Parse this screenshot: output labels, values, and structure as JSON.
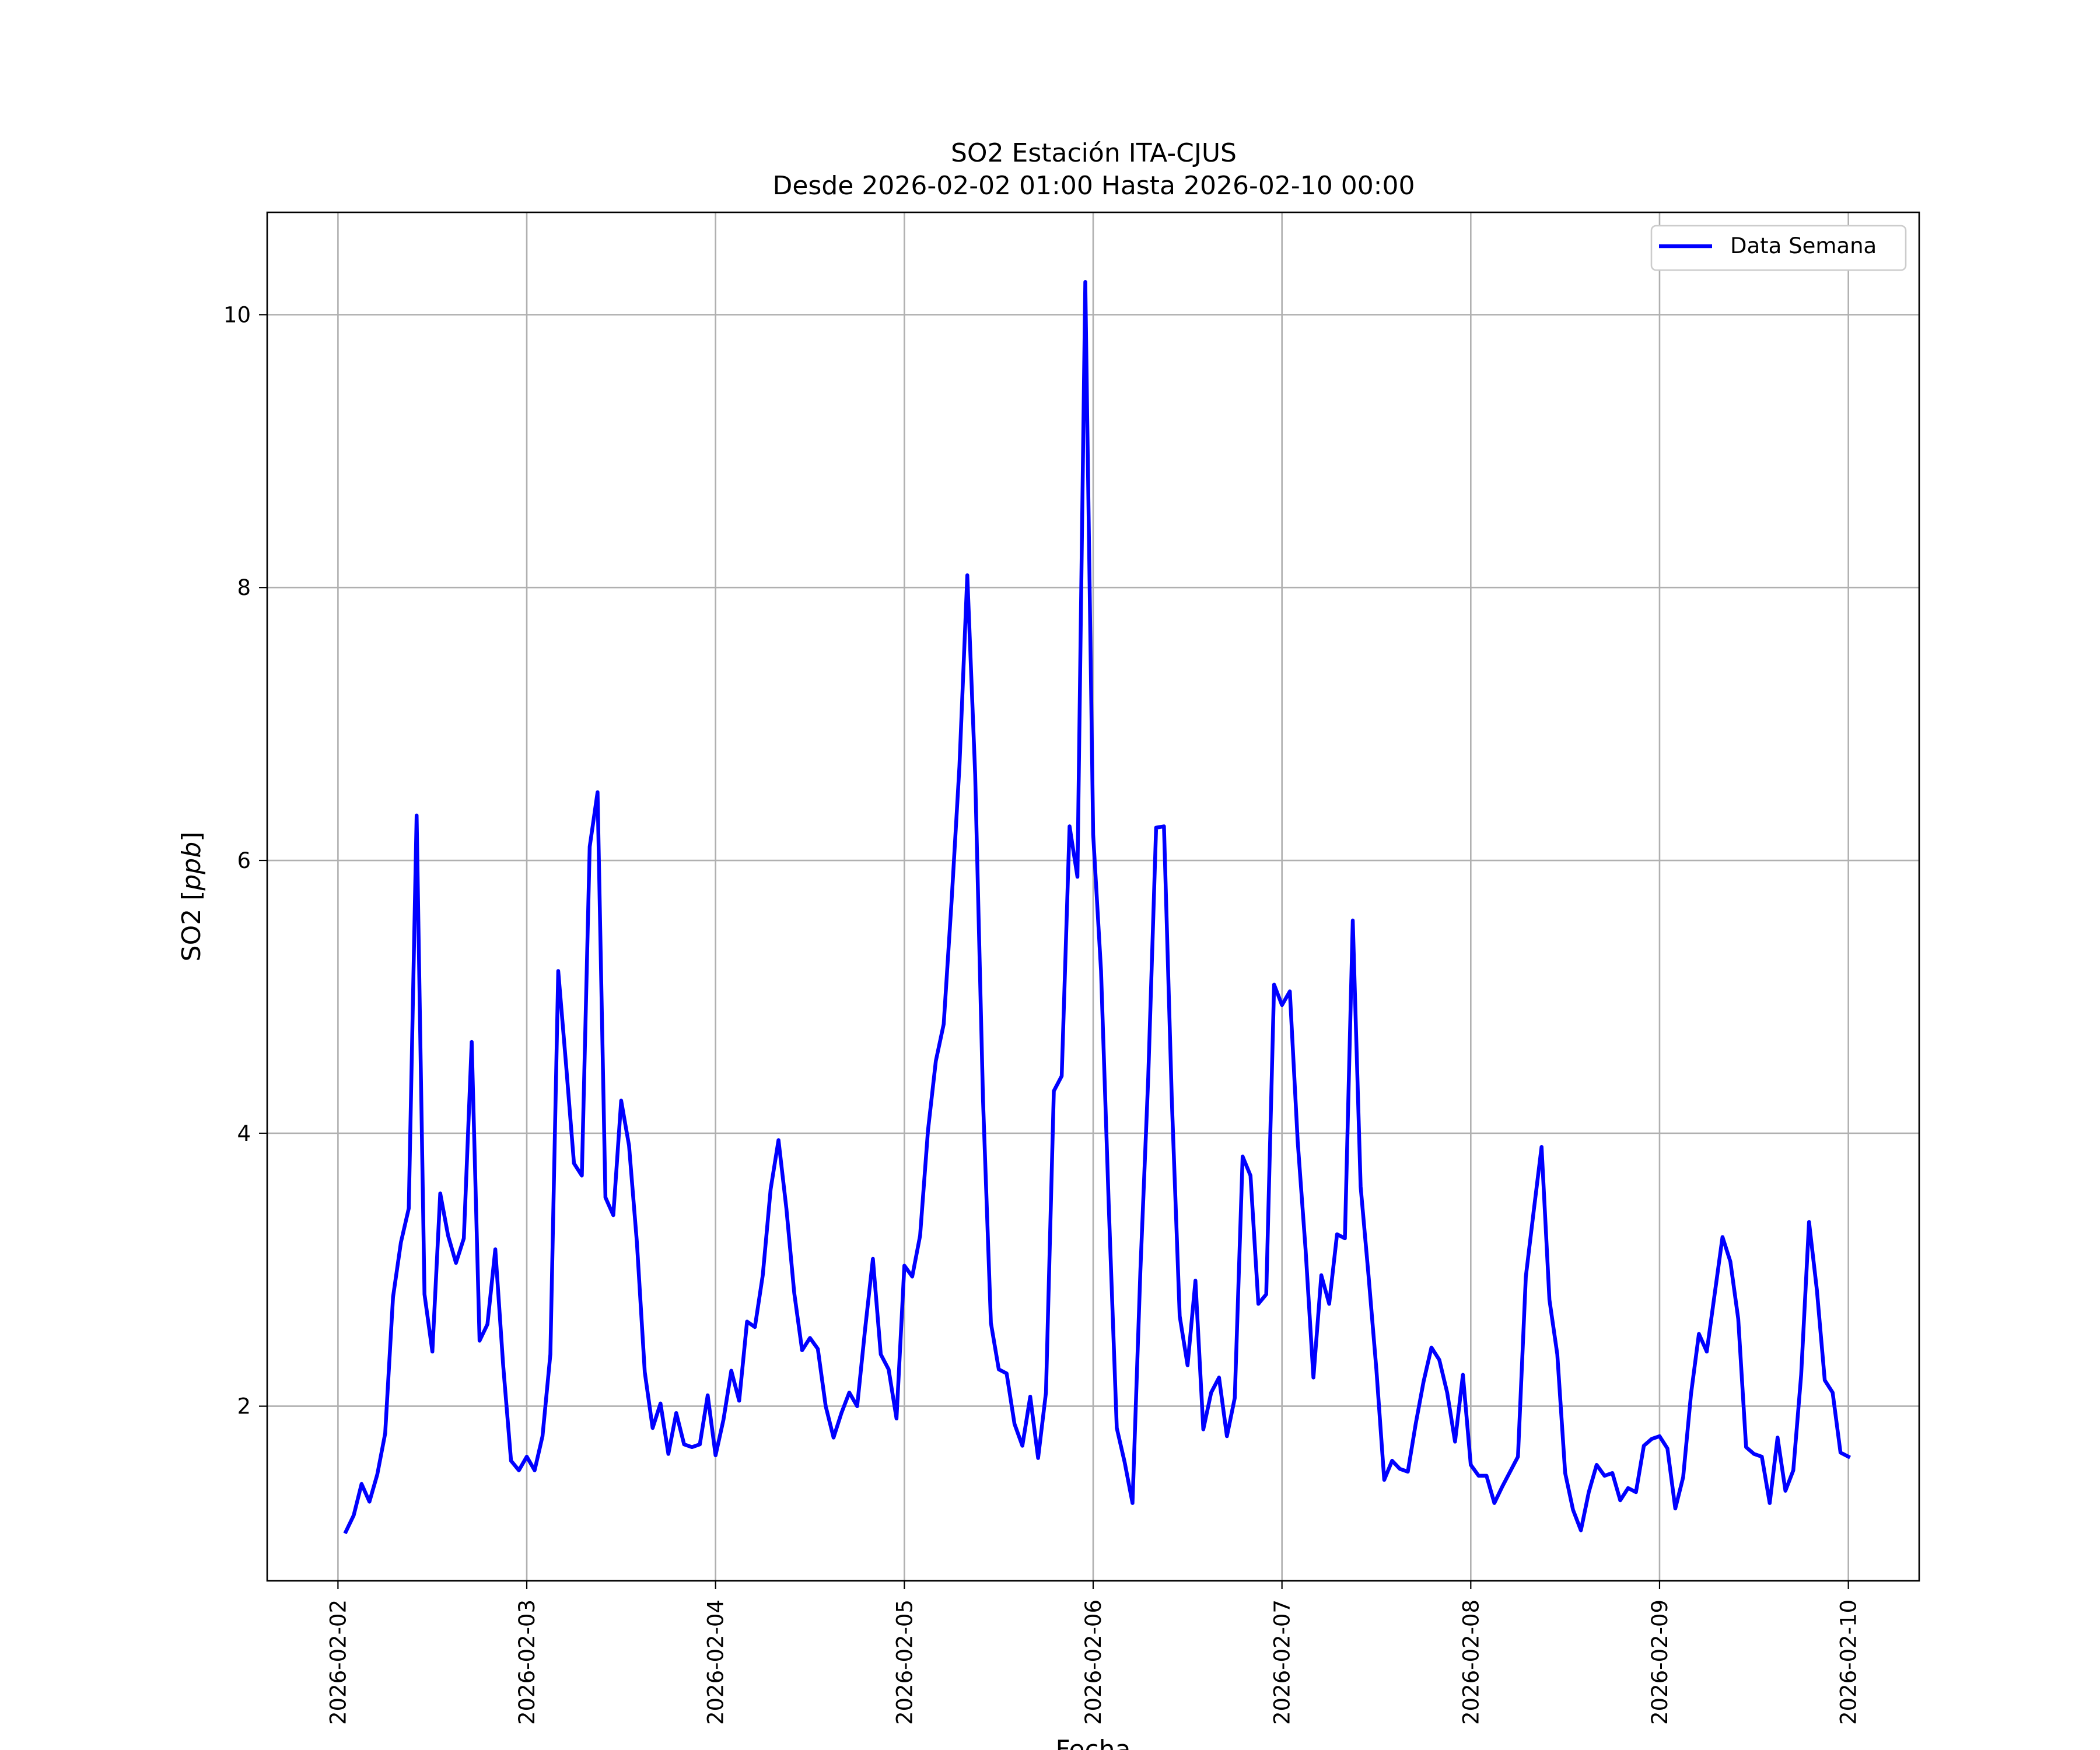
{
  "chart_data": {
    "type": "line",
    "title": "SO2 Estación ITA-CJUS",
    "subtitle": "Desde 2026-02-02 01:00 Hasta 2026-02-10 00:00",
    "xlabel": "Fecha",
    "ylabel": "SO2 [ppb]",
    "ylabel_parts": {
      "prefix": "SO2 [",
      "unit": "ppb",
      "suffix": "]"
    },
    "x_start": "2026-02-02 01:00",
    "x_step_hours": 1,
    "xlim": [
      "2026-02-01 15:00",
      "2026-02-10 09:00"
    ],
    "ylim": [
      0.72,
      10.75
    ],
    "x_ticks": [
      "2026-02-02",
      "2026-02-03",
      "2026-02-04",
      "2026-02-05",
      "2026-02-06",
      "2026-02-07",
      "2026-02-08",
      "2026-02-09",
      "2026-02-10"
    ],
    "y_ticks": [
      2,
      4,
      6,
      8,
      10
    ],
    "grid": true,
    "legend_position": "top-right",
    "series": [
      {
        "name": "Data Semana",
        "color": "#0000ff",
        "values": [
          1.08,
          1.2,
          1.43,
          1.3,
          1.5,
          1.8,
          2.8,
          3.2,
          3.45,
          6.33,
          2.82,
          2.4,
          3.56,
          3.25,
          3.05,
          3.23,
          4.67,
          2.48,
          2.6,
          3.15,
          2.3,
          1.6,
          1.53,
          1.63,
          1.53,
          1.78,
          2.38,
          5.19,
          4.5,
          3.78,
          3.69,
          6.1,
          6.5,
          3.53,
          3.4,
          4.24,
          3.91,
          3.2,
          2.25,
          1.84,
          2.02,
          1.65,
          1.95,
          1.72,
          1.7,
          1.72,
          2.08,
          1.64,
          1.9,
          2.26,
          2.04,
          2.62,
          2.58,
          2.96,
          3.59,
          3.95,
          3.45,
          2.83,
          2.41,
          2.5,
          2.42,
          2.0,
          1.77,
          1.95,
          2.1,
          2.0,
          2.56,
          3.08,
          2.38,
          2.27,
          1.91,
          3.03,
          2.95,
          3.25,
          4.02,
          4.53,
          4.8,
          5.7,
          6.69,
          8.09,
          6.63,
          4.24,
          2.61,
          2.27,
          2.24,
          1.87,
          1.71,
          2.07,
          1.62,
          2.1,
          4.31,
          4.42,
          6.25,
          5.88,
          10.24,
          6.19,
          5.19,
          3.44,
          1.84,
          1.59,
          1.29,
          2.99,
          4.41,
          6.24,
          6.25,
          4.24,
          2.66,
          2.3,
          2.92,
          1.83,
          2.1,
          2.21,
          1.78,
          2.06,
          3.83,
          3.69,
          2.75,
          2.82,
          5.09,
          4.94,
          5.04,
          3.94,
          3.15,
          2.21,
          2.96,
          2.75,
          3.26,
          3.23,
          5.56,
          3.61,
          2.96,
          2.27,
          1.46,
          1.6,
          1.54,
          1.52,
          1.87,
          2.18,
          2.43,
          2.34,
          2.1,
          1.74,
          2.23,
          1.57,
          1.49,
          1.49,
          1.29,
          1.41,
          1.52,
          1.63,
          2.95,
          3.43,
          3.9,
          2.78,
          2.38,
          1.51,
          1.24,
          1.09,
          1.37,
          1.57,
          1.49,
          1.51,
          1.31,
          1.4,
          1.37,
          1.71,
          1.76,
          1.78,
          1.69,
          1.25,
          1.48,
          2.09,
          2.53,
          2.4,
          2.82,
          3.24,
          3.06,
          2.64,
          1.7,
          1.65,
          1.63,
          1.29,
          1.77,
          1.38,
          1.53,
          2.23,
          3.35,
          2.85,
          2.19,
          2.1,
          1.66,
          1.63
        ]
      }
    ]
  }
}
